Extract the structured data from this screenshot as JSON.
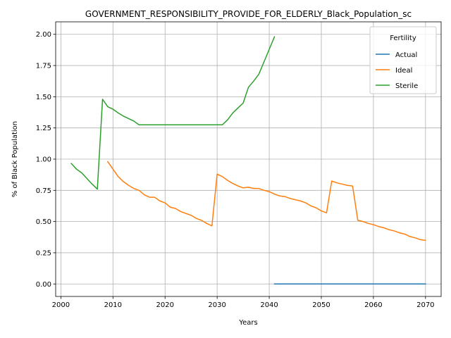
{
  "chart_data": {
    "type": "line",
    "title": "GOVERNMENT_RESPONSIBILITY_PROVIDE_FOR_ELDERLY_Black_Population_sc",
    "xlabel": "Years",
    "ylabel": "% of Black Population",
    "xlim": [
      1999,
      2073
    ],
    "ylim": [
      -0.1,
      2.1
    ],
    "xticks": [
      2000,
      2010,
      2020,
      2030,
      2040,
      2050,
      2060,
      2070
    ],
    "xtick_labels": [
      "2000",
      "2010",
      "2020",
      "2030",
      "2040",
      "2050",
      "2060",
      "2070"
    ],
    "yticks": [
      0.0,
      0.25,
      0.5,
      0.75,
      1.0,
      1.25,
      1.5,
      1.75,
      2.0
    ],
    "ytick_labels": [
      "0.00",
      "0.25",
      "0.50",
      "0.75",
      "1.00",
      "1.25",
      "1.50",
      "1.75",
      "2.00"
    ],
    "grid": true,
    "legend": {
      "title": "Fertility",
      "placement": "top-right"
    },
    "series": [
      {
        "name": "Actual",
        "color": "#1f77b4",
        "x": [
          2041,
          2045,
          2050,
          2055,
          2060,
          2065,
          2070
        ],
        "y": [
          0.0,
          0.0,
          0.0,
          0.0,
          0.0,
          0.0,
          0.0
        ]
      },
      {
        "name": "Ideal",
        "color": "#ff7f0e",
        "x": [
          2009,
          2010,
          2011,
          2012,
          2013,
          2014,
          2015,
          2016,
          2017,
          2018,
          2019,
          2020,
          2021,
          2022,
          2023,
          2024,
          2025,
          2026,
          2027,
          2028,
          2029,
          2030,
          2031,
          2032,
          2033,
          2034,
          2035,
          2036,
          2037,
          2038,
          2039,
          2040,
          2041,
          2042,
          2043,
          2044,
          2045,
          2046,
          2047,
          2048,
          2049,
          2050,
          2051,
          2052,
          2053,
          2054,
          2055,
          2056,
          2057,
          2058,
          2059,
          2060,
          2061,
          2062,
          2063,
          2064,
          2065,
          2066,
          2067,
          2068,
          2069,
          2070
        ],
        "y": [
          0.98,
          0.92,
          0.86,
          0.82,
          0.79,
          0.765,
          0.75,
          0.715,
          0.695,
          0.695,
          0.665,
          0.65,
          0.615,
          0.605,
          0.58,
          0.565,
          0.55,
          0.525,
          0.51,
          0.485,
          0.465,
          0.88,
          0.86,
          0.83,
          0.805,
          0.785,
          0.77,
          0.775,
          0.765,
          0.765,
          0.75,
          0.74,
          0.72,
          0.705,
          0.7,
          0.685,
          0.675,
          0.665,
          0.65,
          0.625,
          0.61,
          0.585,
          0.57,
          0.825,
          0.81,
          0.8,
          0.79,
          0.785,
          0.51,
          0.5,
          0.485,
          0.475,
          0.46,
          0.45,
          0.435,
          0.425,
          0.41,
          0.4,
          0.38,
          0.37,
          0.355,
          0.35
        ]
      },
      {
        "name": "Sterile",
        "color": "#2ca02c",
        "x": [
          2002,
          2003,
          2004,
          2005,
          2006,
          2007,
          2008,
          2009,
          2010,
          2011,
          2012,
          2013,
          2014,
          2015,
          2016,
          2017,
          2018,
          2019,
          2020,
          2021,
          2022,
          2023,
          2024,
          2025,
          2026,
          2027,
          2028,
          2029,
          2030,
          2031,
          2032,
          2033,
          2034,
          2035,
          2036,
          2037,
          2038,
          2039,
          2040,
          2041
        ],
        "y": [
          0.965,
          0.92,
          0.89,
          0.845,
          0.8,
          0.76,
          1.48,
          1.42,
          1.4,
          1.37,
          1.345,
          1.325,
          1.305,
          1.275,
          1.275,
          1.275,
          1.275,
          1.275,
          1.275,
          1.275,
          1.275,
          1.275,
          1.275,
          1.275,
          1.275,
          1.275,
          1.275,
          1.275,
          1.275,
          1.275,
          1.315,
          1.37,
          1.41,
          1.45,
          1.575,
          1.625,
          1.68,
          1.78,
          1.88,
          1.98
        ]
      }
    ]
  }
}
